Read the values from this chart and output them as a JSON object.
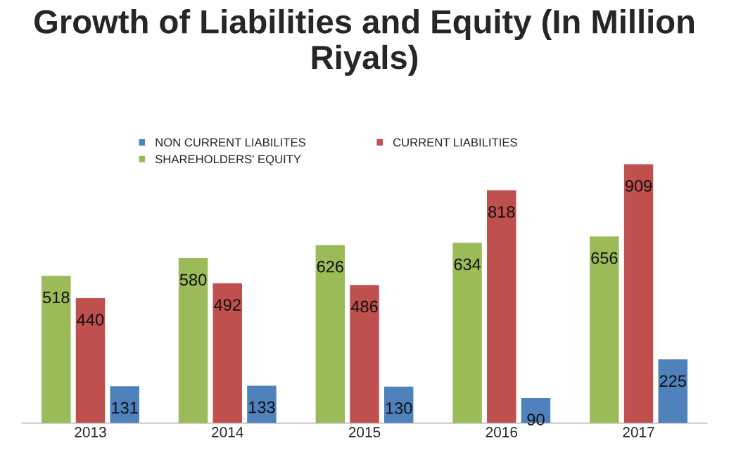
{
  "chart_data": {
    "type": "bar",
    "title": "Growth of Liabilities and Equity (In Million Riyals)",
    "categories": [
      "2013",
      "2014",
      "2015",
      "2016",
      "2017"
    ],
    "series": [
      {
        "name": "SHAREHOLDERS' EQUITY",
        "color": "#9bbb59",
        "values": [
          518,
          580,
          626,
          634,
          656
        ]
      },
      {
        "name": "CURRENT LIABILITIES",
        "color": "#c0504d",
        "values": [
          440,
          492,
          486,
          818,
          909
        ]
      },
      {
        "name": "NON CURRENT LIABILITES",
        "color": "#4f81bd",
        "values": [
          131,
          133,
          130,
          90,
          225
        ]
      }
    ],
    "data_labels": true,
    "legend": "top",
    "grid": false
  }
}
